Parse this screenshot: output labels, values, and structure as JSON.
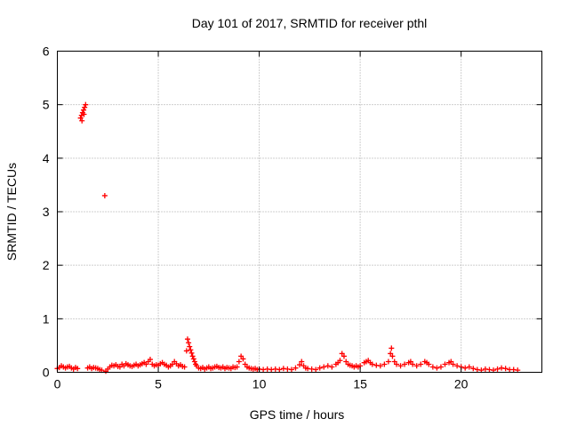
{
  "chart_data": {
    "type": "scatter",
    "title": "Day 101 of 2017, SRMTID for receiver pthl",
    "xlabel": "GPS time / hours",
    "ylabel": "SRMTID / TECUs",
    "xlim": [
      0,
      24
    ],
    "ylim": [
      0,
      6
    ],
    "xticks": [
      0,
      5,
      10,
      15,
      20
    ],
    "yticks": [
      0,
      1,
      2,
      3,
      4,
      5,
      6
    ],
    "grid": true,
    "marker": "+",
    "series": [
      {
        "name": "SRMTID",
        "color": "#ff0000",
        "points": [
          [
            0.0,
            0.07
          ],
          [
            0.1,
            0.09
          ],
          [
            0.2,
            0.12
          ],
          [
            0.3,
            0.1
          ],
          [
            0.4,
            0.08
          ],
          [
            0.5,
            0.1
          ],
          [
            0.6,
            0.11
          ],
          [
            0.7,
            0.08
          ],
          [
            0.8,
            0.06
          ],
          [
            0.9,
            0.09
          ],
          [
            1.0,
            0.07
          ],
          [
            1.15,
            4.75
          ],
          [
            1.2,
            4.8
          ],
          [
            1.25,
            4.85
          ],
          [
            1.3,
            4.9
          ],
          [
            1.35,
            4.95
          ],
          [
            1.4,
            5.0
          ],
          [
            1.22,
            4.7
          ],
          [
            1.32,
            4.82
          ],
          [
            1.5,
            0.08
          ],
          [
            1.6,
            0.1
          ],
          [
            1.7,
            0.07
          ],
          [
            1.8,
            0.09
          ],
          [
            1.9,
            0.08
          ],
          [
            2.0,
            0.07
          ],
          [
            2.1,
            0.05
          ],
          [
            2.2,
            0.04
          ],
          [
            2.35,
            3.3
          ],
          [
            2.4,
            0.02
          ],
          [
            2.5,
            0.06
          ],
          [
            2.6,
            0.1
          ],
          [
            2.7,
            0.13
          ],
          [
            2.8,
            0.12
          ],
          [
            2.9,
            0.14
          ],
          [
            3.0,
            0.11
          ],
          [
            3.1,
            0.1
          ],
          [
            3.2,
            0.15
          ],
          [
            3.3,
            0.12
          ],
          [
            3.4,
            0.16
          ],
          [
            3.5,
            0.14
          ],
          [
            3.6,
            0.12
          ],
          [
            3.7,
            0.11
          ],
          [
            3.8,
            0.13
          ],
          [
            3.9,
            0.15
          ],
          [
            4.0,
            0.12
          ],
          [
            4.1,
            0.14
          ],
          [
            4.2,
            0.16
          ],
          [
            4.3,
            0.18
          ],
          [
            4.4,
            0.15
          ],
          [
            4.5,
            0.2
          ],
          [
            4.6,
            0.24
          ],
          [
            4.7,
            0.15
          ],
          [
            4.8,
            0.12
          ],
          [
            4.9,
            0.14
          ],
          [
            5.0,
            0.13
          ],
          [
            5.1,
            0.16
          ],
          [
            5.2,
            0.18
          ],
          [
            5.3,
            0.15
          ],
          [
            5.4,
            0.13
          ],
          [
            5.5,
            0.1
          ],
          [
            5.6,
            0.12
          ],
          [
            5.7,
            0.15
          ],
          [
            5.8,
            0.2
          ],
          [
            5.9,
            0.16
          ],
          [
            6.0,
            0.12
          ],
          [
            6.1,
            0.14
          ],
          [
            6.2,
            0.11
          ],
          [
            6.3,
            0.1
          ],
          [
            6.4,
            0.4
          ],
          [
            6.45,
            0.62
          ],
          [
            6.5,
            0.55
          ],
          [
            6.55,
            0.48
          ],
          [
            6.6,
            0.42
          ],
          [
            6.65,
            0.36
          ],
          [
            6.7,
            0.3
          ],
          [
            6.75,
            0.25
          ],
          [
            6.8,
            0.2
          ],
          [
            6.85,
            0.15
          ],
          [
            6.9,
            0.12
          ],
          [
            7.0,
            0.08
          ],
          [
            7.1,
            0.07
          ],
          [
            7.2,
            0.09
          ],
          [
            7.3,
            0.06
          ],
          [
            7.4,
            0.08
          ],
          [
            7.5,
            0.1
          ],
          [
            7.6,
            0.07
          ],
          [
            7.7,
            0.08
          ],
          [
            7.8,
            0.1
          ],
          [
            7.9,
            0.11
          ],
          [
            8.0,
            0.09
          ],
          [
            8.1,
            0.08
          ],
          [
            8.2,
            0.1
          ],
          [
            8.3,
            0.07
          ],
          [
            8.4,
            0.09
          ],
          [
            8.5,
            0.08
          ],
          [
            8.6,
            0.07
          ],
          [
            8.7,
            0.1
          ],
          [
            8.8,
            0.09
          ],
          [
            8.9,
            0.1
          ],
          [
            9.0,
            0.2
          ],
          [
            9.1,
            0.3
          ],
          [
            9.2,
            0.25
          ],
          [
            9.3,
            0.15
          ],
          [
            9.4,
            0.1
          ],
          [
            9.5,
            0.08
          ],
          [
            9.6,
            0.07
          ],
          [
            9.7,
            0.06
          ],
          [
            9.8,
            0.07
          ],
          [
            9.9,
            0.05
          ],
          [
            10.0,
            0.06
          ],
          [
            10.2,
            0.05
          ],
          [
            10.4,
            0.06
          ],
          [
            10.6,
            0.05
          ],
          [
            10.8,
            0.06
          ],
          [
            11.0,
            0.05
          ],
          [
            11.2,
            0.07
          ],
          [
            11.4,
            0.06
          ],
          [
            11.6,
            0.05
          ],
          [
            11.8,
            0.08
          ],
          [
            12.0,
            0.14
          ],
          [
            12.1,
            0.2
          ],
          [
            12.2,
            0.12
          ],
          [
            12.3,
            0.08
          ],
          [
            12.4,
            0.07
          ],
          [
            12.6,
            0.06
          ],
          [
            12.8,
            0.05
          ],
          [
            13.0,
            0.08
          ],
          [
            13.2,
            0.1
          ],
          [
            13.4,
            0.12
          ],
          [
            13.6,
            0.1
          ],
          [
            13.8,
            0.15
          ],
          [
            13.9,
            0.18
          ],
          [
            14.0,
            0.22
          ],
          [
            14.1,
            0.35
          ],
          [
            14.2,
            0.3
          ],
          [
            14.3,
            0.2
          ],
          [
            14.4,
            0.15
          ],
          [
            14.5,
            0.13
          ],
          [
            14.6,
            0.12
          ],
          [
            14.7,
            0.1
          ],
          [
            14.8,
            0.12
          ],
          [
            14.9,
            0.1
          ],
          [
            15.0,
            0.12
          ],
          [
            15.2,
            0.18
          ],
          [
            15.3,
            0.2
          ],
          [
            15.4,
            0.22
          ],
          [
            15.5,
            0.18
          ],
          [
            15.6,
            0.15
          ],
          [
            15.8,
            0.13
          ],
          [
            16.0,
            0.12
          ],
          [
            16.2,
            0.15
          ],
          [
            16.4,
            0.2
          ],
          [
            16.5,
            0.35
          ],
          [
            16.55,
            0.45
          ],
          [
            16.6,
            0.3
          ],
          [
            16.7,
            0.2
          ],
          [
            16.8,
            0.15
          ],
          [
            17.0,
            0.12
          ],
          [
            17.2,
            0.15
          ],
          [
            17.4,
            0.18
          ],
          [
            17.5,
            0.2
          ],
          [
            17.6,
            0.15
          ],
          [
            17.8,
            0.12
          ],
          [
            18.0,
            0.15
          ],
          [
            18.2,
            0.2
          ],
          [
            18.3,
            0.18
          ],
          [
            18.4,
            0.15
          ],
          [
            18.6,
            0.1
          ],
          [
            18.8,
            0.08
          ],
          [
            19.0,
            0.1
          ],
          [
            19.2,
            0.15
          ],
          [
            19.4,
            0.18
          ],
          [
            19.5,
            0.2
          ],
          [
            19.6,
            0.15
          ],
          [
            19.8,
            0.12
          ],
          [
            20.0,
            0.1
          ],
          [
            20.2,
            0.08
          ],
          [
            20.4,
            0.1
          ],
          [
            20.6,
            0.07
          ],
          [
            20.8,
            0.05
          ],
          [
            21.0,
            0.04
          ],
          [
            21.2,
            0.06
          ],
          [
            21.4,
            0.05
          ],
          [
            21.6,
            0.04
          ],
          [
            21.8,
            0.06
          ],
          [
            22.0,
            0.08
          ],
          [
            22.2,
            0.07
          ],
          [
            22.4,
            0.05
          ],
          [
            22.6,
            0.05
          ],
          [
            22.8,
            0.04
          ]
        ]
      }
    ]
  }
}
